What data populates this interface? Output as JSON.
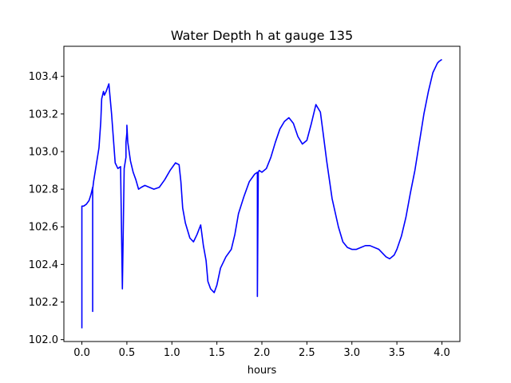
{
  "chart_data": {
    "type": "line",
    "title": "Water Depth h at gauge 135",
    "xlabel": "hours",
    "ylabel": "",
    "xlim": [
      -0.2,
      4.2
    ],
    "ylim": [
      101.99,
      103.56
    ],
    "xticks": [
      0.0,
      0.5,
      1.0,
      1.5,
      2.0,
      2.5,
      3.0,
      3.5,
      4.0
    ],
    "xtick_labels": [
      "0.0",
      "0.5",
      "1.0",
      "1.5",
      "2.0",
      "2.5",
      "3.0",
      "3.5",
      "4.0"
    ],
    "yticks": [
      102.0,
      102.2,
      102.4,
      102.6,
      102.8,
      103.0,
      103.2,
      103.4
    ],
    "ytick_labels": [
      "102.0",
      "102.2",
      "102.4",
      "102.6",
      "102.8",
      "103.0",
      "103.2",
      "103.4"
    ],
    "grid": false,
    "legend": "none",
    "series": [
      {
        "color": "#0000ff",
        "x": [
          0.0,
          0.0,
          0.02,
          0.05,
          0.08,
          0.1,
          0.12,
          0.12,
          0.12,
          0.13,
          0.16,
          0.19,
          0.21,
          0.22,
          0.24,
          0.25,
          0.27,
          0.3,
          0.33,
          0.35,
          0.37,
          0.4,
          0.43,
          0.45,
          0.47,
          0.49,
          0.49,
          0.5,
          0.5,
          0.51,
          0.54,
          0.57,
          0.6,
          0.63,
          0.66,
          0.7,
          0.75,
          0.8,
          0.86,
          0.92,
          0.98,
          1.04,
          1.08,
          1.1,
          1.12,
          1.15,
          1.2,
          1.24,
          1.28,
          1.32,
          1.35,
          1.38,
          1.4,
          1.43,
          1.47,
          1.5,
          1.54,
          1.6,
          1.66,
          1.7,
          1.74,
          1.8,
          1.86,
          1.92,
          1.95,
          1.95,
          1.96,
          1.97,
          2.0,
          2.05,
          2.1,
          2.15,
          2.2,
          2.25,
          2.3,
          2.35,
          2.4,
          2.45,
          2.5,
          2.55,
          2.6,
          2.65,
          2.68,
          2.72,
          2.78,
          2.85,
          2.9,
          2.95,
          3.0,
          3.05,
          3.1,
          3.15,
          3.2,
          3.3,
          3.38,
          3.42,
          3.47,
          3.5,
          3.55,
          3.6,
          3.65,
          3.7,
          3.75,
          3.8,
          3.85,
          3.9,
          3.95,
          3.97,
          4.0
        ],
        "y": [
          102.06,
          102.71,
          102.71,
          102.72,
          102.74,
          102.77,
          102.81,
          102.15,
          102.8,
          102.84,
          102.93,
          103.02,
          103.16,
          103.28,
          103.32,
          103.3,
          103.32,
          103.36,
          103.2,
          103.07,
          102.94,
          102.91,
          102.92,
          102.27,
          102.91,
          102.97,
          103.05,
          103.1,
          103.14,
          103.05,
          102.95,
          102.89,
          102.85,
          102.8,
          102.81,
          102.82,
          102.81,
          102.8,
          102.81,
          102.85,
          102.9,
          102.94,
          102.93,
          102.84,
          102.7,
          102.62,
          102.54,
          102.52,
          102.56,
          102.61,
          102.5,
          102.42,
          102.31,
          102.27,
          102.25,
          102.29,
          102.38,
          102.44,
          102.48,
          102.56,
          102.67,
          102.76,
          102.84,
          102.88,
          102.89,
          102.23,
          102.89,
          102.9,
          102.89,
          102.91,
          102.97,
          103.05,
          103.12,
          103.16,
          103.18,
          103.15,
          103.08,
          103.04,
          103.06,
          103.15,
          103.25,
          103.21,
          103.1,
          102.95,
          102.75,
          102.6,
          102.52,
          102.49,
          102.48,
          102.48,
          102.49,
          102.5,
          102.5,
          102.48,
          102.44,
          102.43,
          102.45,
          102.48,
          102.55,
          102.65,
          102.78,
          102.9,
          103.05,
          103.2,
          103.32,
          103.42,
          103.47,
          103.48,
          103.49
        ]
      }
    ]
  }
}
